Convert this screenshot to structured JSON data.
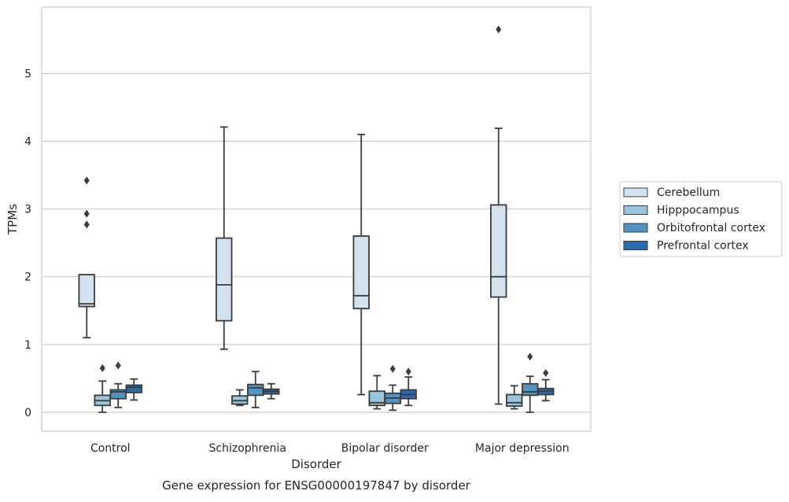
{
  "chart_data": {
    "type": "boxplot",
    "caption": "Gene expression for ENSG00000197847 by disorder",
    "xlabel": "Disorder",
    "ylabel": "TPMs",
    "ylim": [
      -0.28,
      5.98
    ],
    "yticks": [
      0,
      1,
      2,
      3,
      4,
      5
    ],
    "grid": "horizontal",
    "legend_position": "right",
    "categories": [
      "Control",
      "Schizophrenia",
      "Bipolar disorder",
      "Major depression"
    ],
    "series": [
      {
        "name": "Cerebellum",
        "color": "#d2e2f1",
        "boxes": [
          {
            "whisker_low": 1.1,
            "q1": 1.56,
            "median": 1.6,
            "q3": 2.03,
            "whisker_high": 2.03,
            "outliers": [
              2.77,
              2.93,
              3.42
            ]
          },
          {
            "whisker_low": 0.93,
            "q1": 1.35,
            "median": 1.88,
            "q3": 2.57,
            "whisker_high": 4.21,
            "outliers": []
          },
          {
            "whisker_low": 0.26,
            "q1": 1.53,
            "median": 1.72,
            "q3": 2.6,
            "whisker_high": 4.1,
            "outliers": []
          },
          {
            "whisker_low": 0.12,
            "q1": 1.7,
            "median": 2.0,
            "q3": 3.06,
            "whisker_high": 4.19,
            "outliers": [
              5.65
            ]
          }
        ]
      },
      {
        "name": "Hipppocampus",
        "color": "#9ac6dd",
        "boxes": [
          {
            "whisker_low": 0.0,
            "q1": 0.1,
            "median": 0.17,
            "q3": 0.25,
            "whisker_high": 0.46,
            "outliers": [
              0.65
            ]
          },
          {
            "whisker_low": 0.1,
            "q1": 0.12,
            "median": 0.17,
            "q3": 0.24,
            "whisker_high": 0.33,
            "outliers": []
          },
          {
            "whisker_low": 0.05,
            "q1": 0.1,
            "median": 0.14,
            "q3": 0.31,
            "whisker_high": 0.54,
            "outliers": []
          },
          {
            "whisker_low": 0.05,
            "q1": 0.09,
            "median": 0.14,
            "q3": 0.26,
            "whisker_high": 0.39,
            "outliers": []
          }
        ]
      },
      {
        "name": "Orbitofrontal cortex",
        "color": "#5393c2",
        "boxes": [
          {
            "whisker_low": 0.07,
            "q1": 0.2,
            "median": 0.3,
            "q3": 0.33,
            "whisker_high": 0.42,
            "outliers": [
              0.69
            ]
          },
          {
            "whisker_low": 0.07,
            "q1": 0.25,
            "median": 0.36,
            "q3": 0.41,
            "whisker_high": 0.6,
            "outliers": []
          },
          {
            "whisker_low": 0.03,
            "q1": 0.13,
            "median": 0.21,
            "q3": 0.28,
            "whisker_high": 0.4,
            "outliers": [
              0.64
            ]
          },
          {
            "whisker_low": 0.0,
            "q1": 0.25,
            "median": 0.3,
            "q3": 0.42,
            "whisker_high": 0.53,
            "outliers": [
              0.82
            ]
          }
        ]
      },
      {
        "name": "Prefrontal cortex",
        "color": "#2a6aad",
        "boxes": [
          {
            "whisker_low": 0.18,
            "q1": 0.29,
            "median": 0.37,
            "q3": 0.4,
            "whisker_high": 0.49,
            "outliers": []
          },
          {
            "whisker_low": 0.2,
            "q1": 0.27,
            "median": 0.31,
            "q3": 0.34,
            "whisker_high": 0.42,
            "outliers": []
          },
          {
            "whisker_low": 0.1,
            "q1": 0.2,
            "median": 0.26,
            "q3": 0.33,
            "whisker_high": 0.52,
            "outliers": [
              0.6
            ]
          },
          {
            "whisker_low": 0.17,
            "q1": 0.26,
            "median": 0.31,
            "q3": 0.35,
            "whisker_high": 0.48,
            "outliers": [
              0.58
            ]
          }
        ]
      }
    ]
  }
}
